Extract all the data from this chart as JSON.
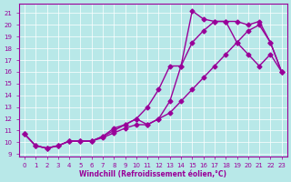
{
  "line1_x": [
    0,
    1,
    2,
    3,
    4,
    5,
    6,
    7,
    8,
    9,
    10,
    11,
    12,
    13,
    14,
    15,
    16,
    17,
    18,
    19,
    20,
    21,
    22,
    23
  ],
  "line1_y": [
    10.7,
    9.7,
    9.5,
    9.7,
    10.1,
    10.1,
    10.1,
    10.5,
    11.2,
    11.5,
    12.0,
    13.0,
    14.5,
    16.5,
    16.5,
    21.2,
    20.5,
    20.3,
    20.3,
    18.5,
    17.5,
    16.5,
    17.5,
    16.0
  ],
  "line2_x": [
    0,
    1,
    2,
    3,
    4,
    5,
    6,
    7,
    8,
    9,
    10,
    11,
    12,
    13,
    14,
    15,
    16,
    17,
    18,
    19,
    20,
    21,
    22,
    23
  ],
  "line2_y": [
    10.7,
    9.7,
    9.5,
    9.7,
    10.1,
    10.1,
    10.1,
    10.5,
    11.0,
    11.5,
    12.0,
    11.5,
    12.0,
    13.5,
    16.5,
    18.5,
    19.5,
    20.3,
    20.3,
    20.3,
    20.0,
    20.3,
    18.5,
    16.0
  ],
  "line3_x": [
    0,
    1,
    2,
    3,
    4,
    5,
    6,
    7,
    8,
    9,
    10,
    11,
    12,
    13,
    14,
    15,
    16,
    17,
    18,
    19,
    20,
    21,
    22,
    23
  ],
  "line3_y": [
    10.7,
    9.7,
    9.5,
    9.7,
    10.1,
    10.1,
    10.1,
    10.4,
    10.8,
    11.2,
    11.5,
    11.5,
    12.0,
    12.5,
    13.5,
    14.5,
    15.5,
    16.5,
    17.5,
    18.5,
    19.5,
    20.0,
    18.5,
    16.0
  ],
  "line_color": "#990099",
  "bg_color": "#b8e8e8",
  "grid_color": "#ffffff",
  "ylabel_ticks": [
    9,
    10,
    11,
    12,
    13,
    14,
    15,
    16,
    17,
    18,
    19,
    20,
    21
  ],
  "xlabel_ticks": [
    0,
    1,
    2,
    3,
    4,
    5,
    6,
    7,
    8,
    9,
    10,
    11,
    12,
    13,
    14,
    15,
    16,
    17,
    18,
    19,
    20,
    21,
    22,
    23
  ],
  "ylim": [
    8.8,
    21.8
  ],
  "xlim": [
    -0.5,
    23.5
  ],
  "xlabel": "Windchill (Refroidissement éolien,°C)",
  "marker": "D",
  "marker_size": 2.5,
  "line_width": 1.0
}
